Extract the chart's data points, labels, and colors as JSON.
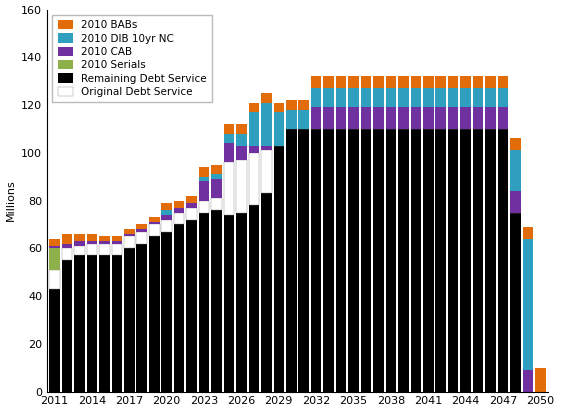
{
  "years": [
    2011,
    2012,
    2013,
    2014,
    2015,
    2016,
    2017,
    2018,
    2019,
    2020,
    2021,
    2022,
    2023,
    2024,
    2025,
    2026,
    2027,
    2028,
    2029,
    2030,
    2031,
    2032,
    2033,
    2034,
    2035,
    2036,
    2037,
    2038,
    2039,
    2040,
    2041,
    2042,
    2043,
    2044,
    2045,
    2046,
    2047,
    2048,
    2049,
    2050
  ],
  "remaining_debt": [
    43,
    55,
    57,
    57,
    57,
    57,
    60,
    62,
    65,
    67,
    70,
    72,
    75,
    76,
    74,
    75,
    78,
    83,
    103,
    110,
    110,
    110,
    110,
    110,
    110,
    110,
    110,
    110,
    110,
    110,
    110,
    110,
    110,
    110,
    110,
    110,
    110,
    75,
    0,
    0
  ],
  "original_debt": [
    8,
    5,
    4,
    5,
    5,
    5,
    5,
    5,
    5,
    5,
    5,
    5,
    5,
    5,
    22,
    22,
    22,
    18,
    0,
    0,
    0,
    0,
    0,
    0,
    0,
    0,
    0,
    0,
    0,
    0,
    0,
    0,
    0,
    0,
    0,
    0,
    0,
    0,
    0,
    0
  ],
  "serials": [
    9,
    0,
    0,
    0,
    0,
    0,
    0,
    0,
    0,
    0,
    0,
    0,
    0,
    0,
    0,
    0,
    0,
    0,
    0,
    0,
    0,
    0,
    0,
    0,
    0,
    0,
    0,
    0,
    0,
    0,
    0,
    0,
    0,
    0,
    0,
    0,
    0,
    0,
    0,
    0
  ],
  "cab": [
    1,
    2,
    2,
    1,
    1,
    1,
    1,
    1,
    1,
    2,
    2,
    2,
    8,
    8,
    8,
    6,
    3,
    2,
    0,
    0,
    0,
    9,
    9,
    9,
    9,
    9,
    9,
    9,
    9,
    9,
    9,
    9,
    9,
    9,
    9,
    9,
    9,
    9,
    9,
    0
  ],
  "dib10yr": [
    0,
    0,
    0,
    0,
    0,
    0,
    0,
    0,
    0,
    2,
    0,
    0,
    2,
    2,
    4,
    5,
    14,
    18,
    14,
    8,
    8,
    8,
    8,
    8,
    8,
    8,
    8,
    8,
    8,
    8,
    8,
    8,
    8,
    8,
    8,
    8,
    8,
    17,
    55,
    0
  ],
  "babs": [
    3,
    4,
    3,
    3,
    2,
    2,
    2,
    2,
    2,
    3,
    3,
    3,
    4,
    4,
    4,
    4,
    4,
    4,
    4,
    4,
    4,
    5,
    5,
    5,
    5,
    5,
    5,
    5,
    5,
    5,
    5,
    5,
    5,
    5,
    5,
    5,
    5,
    5,
    5,
    10
  ],
  "color_remaining": "#000000",
  "color_original": "#ffffff",
  "color_serials": "#8db04a",
  "color_cab": "#7030a0",
  "color_dib10yr": "#2e9fbf",
  "color_babs": "#e26b0a",
  "ylim": [
    0,
    160
  ],
  "ylabel": "Millions",
  "yticks": [
    0,
    20,
    40,
    60,
    80,
    100,
    120,
    140,
    160
  ],
  "xtick_years": [
    2011,
    2014,
    2017,
    2020,
    2023,
    2026,
    2029,
    2032,
    2035,
    2038,
    2041,
    2044,
    2047,
    2050
  ]
}
